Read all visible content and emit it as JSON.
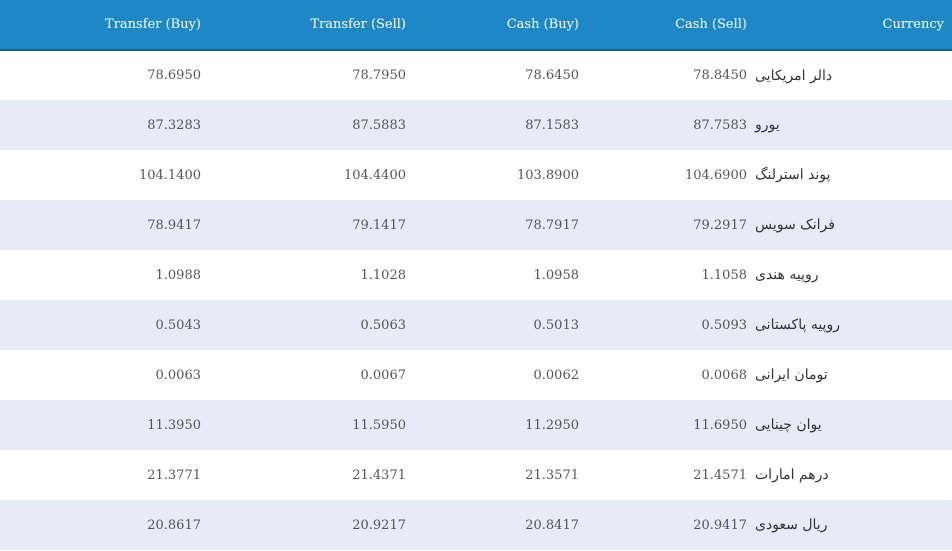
{
  "table": {
    "headers": [
      "Transfer (Buy)",
      "Transfer (Sell)",
      "Cash (Buy)",
      "Cash (Sell)",
      "Currency"
    ],
    "rows": [
      {
        "transfer_buy": "78.6950",
        "transfer_sell": "78.7950",
        "cash_buy": "78.6450",
        "cash_sell": "78.8450",
        "currency": "دالر امریکایی"
      },
      {
        "transfer_buy": "87.3283",
        "transfer_sell": "87.5883",
        "cash_buy": "87.1583",
        "cash_sell": "87.7583",
        "currency": "یورو"
      },
      {
        "transfer_buy": "104.1400",
        "transfer_sell": "104.4400",
        "cash_buy": "103.8900",
        "cash_sell": "104.6900",
        "currency": "پوند استرلنگ"
      },
      {
        "transfer_buy": "78.9417",
        "transfer_sell": "79.1417",
        "cash_buy": "78.7917",
        "cash_sell": "79.2917",
        "currency": "فرانک سویس"
      },
      {
        "transfer_buy": "1.0988",
        "transfer_sell": "1.1028",
        "cash_buy": "1.0958",
        "cash_sell": "1.1058",
        "currency": "روپیه هندی"
      },
      {
        "transfer_buy": "0.5043",
        "transfer_sell": "0.5063",
        "cash_buy": "0.5013",
        "cash_sell": "0.5093",
        "currency": "روپیه پاکستانی"
      },
      {
        "transfer_buy": "0.0063",
        "transfer_sell": "0.0067",
        "cash_buy": "0.0062",
        "cash_sell": "0.0068",
        "currency": "تومان ایرانی"
      },
      {
        "transfer_buy": "11.3950",
        "transfer_sell": "11.5950",
        "cash_buy": "11.2950",
        "cash_sell": "11.6950",
        "currency": "یوان چینایی"
      },
      {
        "transfer_buy": "21.3771",
        "transfer_sell": "21.4371",
        "cash_buy": "21.3571",
        "cash_sell": "21.4571",
        "currency": "درهم امارات"
      },
      {
        "transfer_buy": "20.8617",
        "transfer_sell": "20.9217",
        "cash_buy": "20.8417",
        "cash_sell": "20.9417",
        "currency": "ریال سعودی"
      }
    ]
  },
  "colors": {
    "header_bg": "#1e88c6",
    "header_text": "#ffffff",
    "row_alt_bg": "#e8eaf8",
    "row_bg": "#ffffff"
  }
}
